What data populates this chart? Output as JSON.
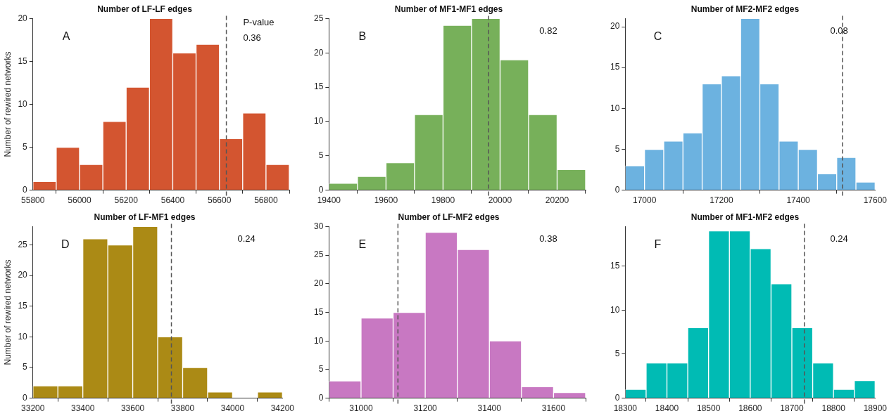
{
  "chart_data": [
    {
      "type": "histogram",
      "title": "Number of LF-LF edges",
      "ylabel": "Number of rewired networks",
      "bins": [
        55800,
        55900,
        56000,
        56100,
        56200,
        56300,
        56400,
        56500,
        56600,
        56700,
        56800,
        56900
      ],
      "values": [
        1,
        5,
        3,
        8,
        12,
        20,
        16,
        17,
        6,
        9,
        3
      ],
      "color": "#d35530",
      "xlim": [
        55800,
        56900
      ],
      "xticks": [
        55800,
        56000,
        56200,
        56400,
        56600,
        56800
      ],
      "ylim": [
        0,
        20
      ],
      "yticks": [
        0,
        5,
        10,
        15,
        20
      ],
      "grid": false,
      "legend": false,
      "ref_lines": [
        {
          "axis": "x",
          "value": 56630,
          "color": "#555555",
          "line_style": "dashed"
        }
      ],
      "annotations": [
        "A",
        "P-value",
        "0.36"
      ]
    },
    {
      "type": "histogram",
      "title": "Number of MF1-MF1 edges",
      "bins": [
        19400,
        19500,
        19600,
        19700,
        19800,
        19900,
        20000,
        20100,
        20200,
        20300
      ],
      "values": [
        1,
        2,
        4,
        11,
        24,
        25,
        19,
        11,
        3
      ],
      "color": "#77b05a",
      "xlim": [
        19400,
        20300
      ],
      "xticks": [
        19400,
        19600,
        19800,
        20000,
        20200
      ],
      "ylim": [
        0,
        25
      ],
      "yticks": [
        0,
        5,
        10,
        15,
        20,
        25
      ],
      "grid": false,
      "legend": false,
      "ref_lines": [
        {
          "axis": "x",
          "value": 19960,
          "color": "#555555",
          "line_style": "dashed"
        }
      ],
      "annotations": [
        "B",
        "0.82"
      ]
    },
    {
      "type": "histogram",
      "title": "Number of MF2-MF2 edges",
      "bins": [
        16950,
        17000,
        17050,
        17100,
        17150,
        17200,
        17250,
        17300,
        17350,
        17400,
        17450,
        17500,
        17550,
        17600
      ],
      "values": [
        3,
        5,
        6,
        7,
        13,
        14,
        21,
        13,
        6,
        5,
        2,
        4,
        1
      ],
      "color": "#6cb2e0",
      "xlim": [
        16950,
        17600
      ],
      "xticks": [
        17000,
        17200,
        17400,
        17600
      ],
      "ylim": [
        0,
        21
      ],
      "yticks": [
        0,
        5,
        10,
        15,
        20
      ],
      "grid": false,
      "legend": false,
      "ref_lines": [
        {
          "axis": "x",
          "value": 17515,
          "color": "#555555",
          "line_style": "dashed"
        }
      ],
      "annotations": [
        "C",
        "0.08"
      ]
    },
    {
      "type": "histogram",
      "title": "Number of LF-MF1 edges",
      "ylabel": "Number of rewired networks",
      "bins": [
        33200,
        33300,
        33400,
        33500,
        33600,
        33700,
        33800,
        33900,
        34000,
        34100,
        34200
      ],
      "values": [
        2,
        2,
        26,
        25,
        28,
        10,
        5,
        1,
        0,
        1
      ],
      "color": "#ab8a15",
      "xlim": [
        33200,
        34200
      ],
      "xticks": [
        33200,
        33400,
        33600,
        33800,
        34000,
        34200
      ],
      "ylim": [
        0,
        28
      ],
      "yticks": [
        0,
        5,
        10,
        15,
        20,
        25
      ],
      "grid": false,
      "legend": false,
      "ref_lines": [
        {
          "axis": "x",
          "value": 33755,
          "color": "#555555",
          "line_style": "dashed"
        }
      ],
      "annotations": [
        "D",
        "0.24"
      ]
    },
    {
      "type": "histogram",
      "title": "Number of LF-MF2 edges",
      "bins": [
        30900,
        31000,
        31100,
        31200,
        31300,
        31400,
        31500,
        31600,
        31700
      ],
      "values": [
        3,
        14,
        15,
        29,
        26,
        10,
        2,
        1
      ],
      "color": "#c878c2",
      "xlim": [
        30900,
        31700
      ],
      "xticks": [
        31000,
        31200,
        31400,
        31600
      ],
      "ylim": [
        0,
        30
      ],
      "yticks": [
        0,
        5,
        10,
        15,
        20,
        25,
        30
      ],
      "grid": false,
      "legend": false,
      "ref_lines": [
        {
          "axis": "x",
          "value": 31115,
          "color": "#555555",
          "line_style": "dashed"
        }
      ],
      "annotations": [
        "E",
        "0.38"
      ]
    },
    {
      "type": "histogram",
      "title": "Number of MF1-MF2 edges",
      "bins": [
        18300,
        18350,
        18400,
        18450,
        18500,
        18550,
        18600,
        18650,
        18700,
        18750,
        18800,
        18850,
        18900
      ],
      "values": [
        1,
        4,
        4,
        8,
        19,
        19,
        17,
        13,
        8,
        4,
        1,
        2
      ],
      "color": "#00bbb4",
      "xlim": [
        18300,
        18900
      ],
      "xticks": [
        18300,
        18400,
        18500,
        18600,
        18700,
        18800,
        18900
      ],
      "ylim": [
        0,
        19.5
      ],
      "yticks": [
        0,
        5,
        10,
        15
      ],
      "grid": false,
      "legend": false,
      "ref_lines": [
        {
          "axis": "x",
          "value": 18730,
          "color": "#555555",
          "line_style": "dashed"
        }
      ],
      "annotations": [
        "F",
        "0.24"
      ]
    }
  ]
}
